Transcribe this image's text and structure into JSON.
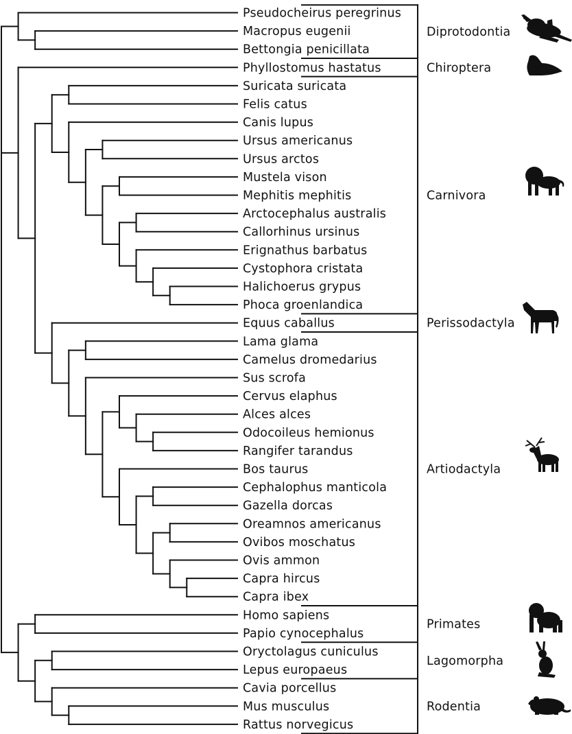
{
  "tree": {
    "taxa": [
      "Pseudocheirus peregrinus",
      "Macropus eugenii",
      "Bettongia penicillata",
      "Phyllostomus hastatus",
      "Suricata suricata",
      "Felis catus",
      "Canis lupus",
      "Ursus americanus",
      "Ursus arctos",
      "Mustela vison",
      "Mephitis mephitis",
      "Arctocephalus australis",
      "Callorhinus ursinus",
      "Erignathus barbatus",
      "Cystophora cristata",
      "Halichoerus grypus",
      "Phoca groenlandica",
      "Equus caballus",
      "Lama glama",
      "Camelus dromedarius",
      "Sus scrofa",
      "Cervus elaphus",
      "Alces alces",
      "Odocoileus hemionus",
      "Rangifer tarandus",
      "Bos taurus",
      "Cephalophus manticola",
      "Gazella dorcas",
      "Oreamnos americanus",
      "Ovibos moschatus",
      "Ovis ammon",
      "Capra hircus",
      "Capra ibex",
      "Homo sapiens",
      "Papio cynocephalus",
      "Oryctolagus cuniculus",
      "Lepus europaeus",
      "Cavia porcellus",
      "Mus musculus",
      "Rattus norvegicus"
    ],
    "newick": "(((Pseudocheirus peregrinus,(Macropus eugenii,Bettongia penicillata))),((Phyllostomus hastatus,((((Suricata suricata,Felis catus),(Canis lupus,((Ursus americanus,Ursus arctos),((Mustela vison,Mephitis mephitis),((Arctocephalus australis,Callorhinus ursinus),(Erignathus barbatus,(Cystophora cristata,(Halichoerus grypus,Phoca groenlandica)))))))),(Equus caballus,((Lama glama,Camelus dromedarius),(Sus scrofa,((Cervus elaphus,(Alces alces,(Odocoileus hemionus,Rangifer tarandus))),(Bos taurus,((Cephalophus manticola,Gazella dorcas),((Oreamnos americanus,Ovibos moschatus),(Ovis ammon,(Capra hircus,Capra ibex))))))))))))),((Homo sapiens,Papio cynocephalus),((Oryctolagus cuniculus,Lepus europaeus),(Cavia porcellus,(Mus musculus,Rattus norvegicus))))));"
  },
  "orders": [
    {
      "name": "Diprotodontia",
      "first": 0,
      "last": 2,
      "icon": "kangaroo-icon"
    },
    {
      "name": "Chiroptera",
      "first": 3,
      "last": 3,
      "icon": "bat-icon"
    },
    {
      "name": "Carnivora",
      "first": 4,
      "last": 16,
      "icon": "lion-icon"
    },
    {
      "name": "Perissodactyla",
      "first": 17,
      "last": 17,
      "icon": "horse-icon"
    },
    {
      "name": "Artiodactyla",
      "first": 18,
      "last": 32,
      "icon": "deer-icon"
    },
    {
      "name": "Primates",
      "first": 33,
      "last": 34,
      "icon": "monkey-icon"
    },
    {
      "name": "Lagomorpha",
      "first": 35,
      "last": 36,
      "icon": "rabbit-icon"
    },
    {
      "name": "Rodentia",
      "first": 37,
      "last": 39,
      "icon": "rat-icon"
    }
  ]
}
